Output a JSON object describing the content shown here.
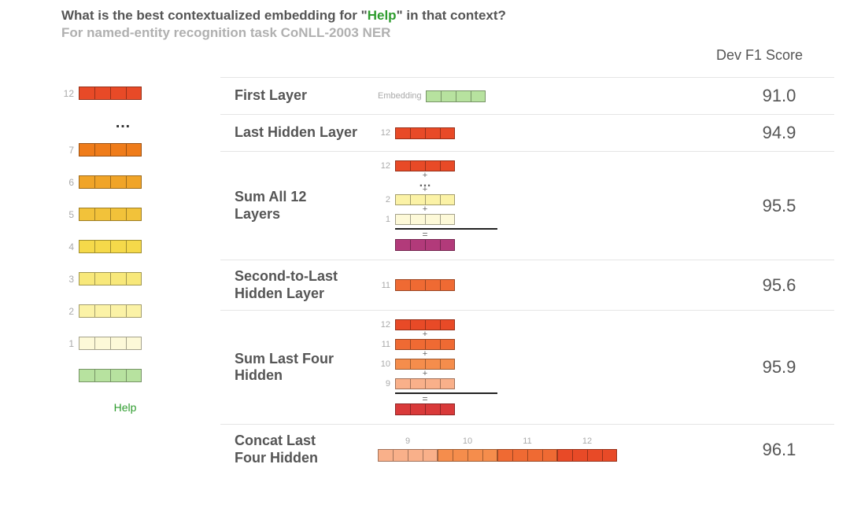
{
  "heading": {
    "title_prefix": "What is the best contextualized embedding for \"",
    "title_highlight": "Help",
    "title_suffix": "\" in that context?",
    "subtitle": "For named-entity recognition task CoNLL-2003 NER"
  },
  "score_header": "Dev F1 Score",
  "colors": {
    "layer12": "#e84a27",
    "layer11": "#ef6a33",
    "layer10": "#f58d4c",
    "layer9": "#f9b08a",
    "layer7": "#ef7c1a",
    "layer6": "#f0a428",
    "layer5": "#f2c23a",
    "layer4": "#f5d94a",
    "layer3": "#f8e87a",
    "layer2": "#fbf2a6",
    "layer1": "#fdf9d8",
    "embedding": "#b7e29f",
    "sum_result": "#b23a7a",
    "sum_last4_result": "#d93a3a",
    "border": "rgba(0,0,0,0.35)"
  },
  "left_stack": {
    "rows": [
      {
        "label": "12",
        "color": "layer12"
      },
      {
        "ellipsis": true
      },
      {
        "label": "7",
        "color": "layer7"
      },
      {
        "label": "6",
        "color": "layer6"
      },
      {
        "label": "5",
        "color": "layer5"
      },
      {
        "label": "4",
        "color": "layer4"
      },
      {
        "label": "3",
        "color": "layer3"
      },
      {
        "label": "2",
        "color": "layer2"
      },
      {
        "label": "1",
        "color": "layer1"
      },
      {
        "label": "",
        "color": "embedding",
        "no_label": true
      }
    ],
    "help_label": "Help"
  },
  "rows": [
    {
      "id": "first-layer",
      "name": "First Layer",
      "score": "91.0",
      "viz": {
        "type": "single",
        "pre_label": "Embedding",
        "color": "embedding"
      }
    },
    {
      "id": "last-hidden",
      "name": "Last Hidden Layer",
      "score": "94.9",
      "viz": {
        "type": "single",
        "pre_label_narrow": "12",
        "color": "layer12"
      }
    },
    {
      "id": "sum-all-12",
      "name": "Sum All 12\nLayers",
      "score": "95.5",
      "viz": {
        "type": "sum",
        "terms": [
          {
            "label": "12",
            "color": "layer12"
          },
          {
            "ellipsis": true
          },
          {
            "label": "2",
            "color": "layer2"
          },
          {
            "label": "1",
            "color": "layer1"
          }
        ],
        "result_color": "sum_result"
      }
    },
    {
      "id": "second-to-last",
      "name": "Second-to-Last\nHidden Layer",
      "score": "95.6",
      "viz": {
        "type": "single",
        "pre_label_narrow": "11",
        "color": "layer11"
      }
    },
    {
      "id": "sum-last-four",
      "name": "Sum Last Four\nHidden",
      "score": "95.9",
      "viz": {
        "type": "sum",
        "terms": [
          {
            "label": "12",
            "color": "layer12"
          },
          {
            "label": "11",
            "color": "layer11"
          },
          {
            "label": "10",
            "color": "layer10"
          },
          {
            "label": "9",
            "color": "layer9"
          }
        ],
        "result_color": "sum_last4_result"
      }
    },
    {
      "id": "concat-last-four",
      "name": "Concat Last\nFour Hidden",
      "score": "96.1",
      "viz": {
        "type": "concat",
        "ticks": [
          "9",
          "10",
          "11",
          "12"
        ],
        "segments": [
          "layer9",
          "layer10",
          "layer11",
          "layer12"
        ]
      }
    }
  ]
}
